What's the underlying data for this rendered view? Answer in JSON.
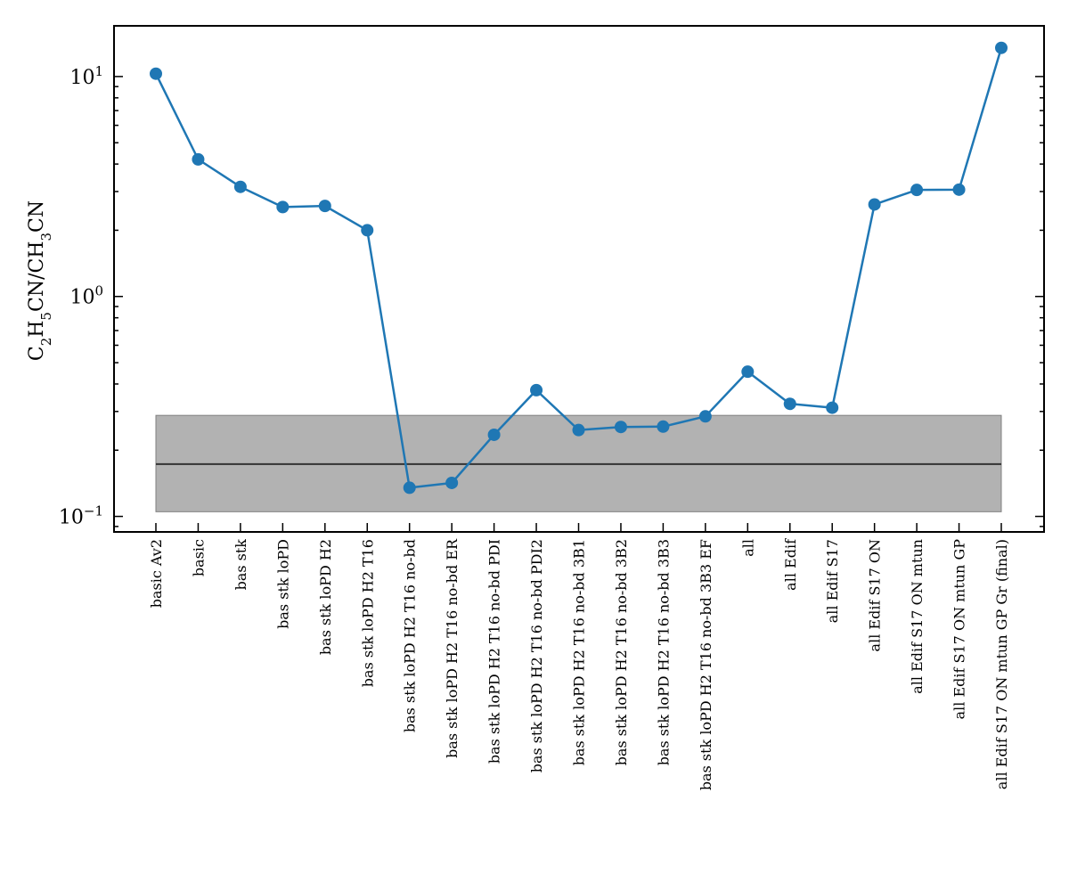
{
  "chart_data": {
    "type": "line",
    "title": "",
    "xlabel": "",
    "ylabel": "C$_2$H$_5$CN/CH$_3$CN",
    "ylabel_parts": [
      {
        "t": "C"
      },
      {
        "t": "2",
        "sub": true
      },
      {
        "t": "H"
      },
      {
        "t": "5",
        "sub": true
      },
      {
        "t": "CN/CH"
      },
      {
        "t": "3",
        "sub": true
      },
      {
        "t": "CN"
      }
    ],
    "yscale": "log",
    "ylim": [
      0.085,
      17
    ],
    "yticks": [
      {
        "value": 0.1,
        "base": "10",
        "exp": "−1"
      },
      {
        "value": 1,
        "base": "10",
        "exp": "0"
      },
      {
        "value": 10,
        "base": "10",
        "exp": "1"
      }
    ],
    "categories": [
      "basic Av2",
      "basic",
      "bas stk",
      "bas stk loPD",
      "bas stk loPD H2",
      "bas stk loPD H2 T16",
      "bas stk loPD H2 T16 no-bd",
      "bas stk loPD H2 T16 no-bd ER",
      "bas stk loPD H2 T16 no-bd PDI",
      "bas stk loPD H2 T16 no-bd PDI2",
      "bas stk loPD H2 T16 no-bd 3B1",
      "bas stk loPD H2 T16 no-bd 3B2",
      "bas stk loPD H2 T16 no-bd 3B3",
      "bas stk loPD H2 T16 no-bd 3B3 EF",
      "all",
      "all Edif",
      "all Edif S17",
      "all Edif S17 ON",
      "all Edif S17 ON mtun",
      "all Edif S17 ON mtun GP",
      "all Edif S17 ON mtun GP Gr (final)"
    ],
    "series": [
      {
        "values": [
          10.3,
          4.2,
          3.15,
          2.55,
          2.58,
          2.0,
          0.135,
          0.142,
          0.235,
          0.375,
          0.247,
          0.255,
          0.256,
          0.285,
          0.455,
          0.325,
          0.312,
          2.62,
          3.05,
          3.06,
          13.5
        ],
        "color": "#1f77b4"
      }
    ],
    "reference_line": {
      "value": 0.173,
      "color": "#333333"
    },
    "reference_band": {
      "low": 0.105,
      "high": 0.288,
      "color": "#b2b2b2"
    },
    "grid": false,
    "legend": "none"
  }
}
